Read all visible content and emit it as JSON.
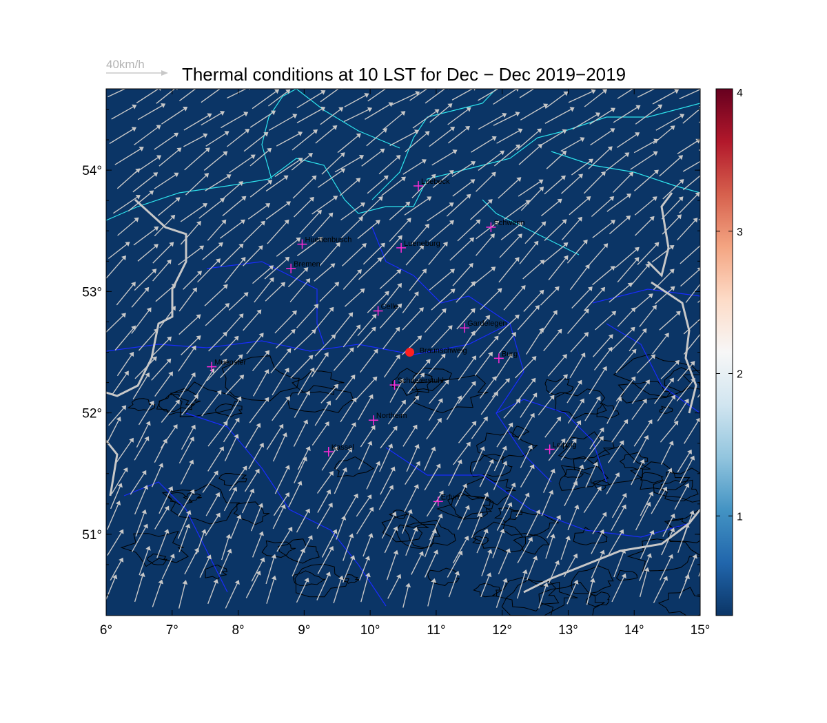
{
  "title": "Thermal conditions at 10 LST for Dec − Dec  2019−2019",
  "wind_legend": {
    "label": "40km/h",
    "color": "#c0c0c0"
  },
  "map": {
    "lon_range": [
      6,
      15
    ],
    "lat_range": [
      50.33,
      54.67
    ],
    "background_color": "#0b3566",
    "contour_color": "#000000",
    "border_color": "#1a2cff",
    "coast_color": "#2ee6ee",
    "national_border_color": "#c8c8c8",
    "arrow_color": "#c8c8c8",
    "x_ticks": [
      "6°",
      "7°",
      "8°",
      "9°",
      "10°",
      "11°",
      "12°",
      "13°",
      "14°",
      "15°"
    ],
    "y_ticks": [
      {
        "lat": 51,
        "label": "51°"
      },
      {
        "lat": 52,
        "label": "52°"
      },
      {
        "lat": 53,
        "label": "53°"
      },
      {
        "lat": 54,
        "label": "54°"
      }
    ]
  },
  "marker": {
    "name": "Braunschweig",
    "lon": 10.6,
    "lat": 52.5,
    "color": "#ff2020"
  },
  "cities": [
    {
      "name": "Luebeck",
      "lon": 10.73,
      "lat": 53.87
    },
    {
      "name": "Schwerin",
      "lon": 11.83,
      "lat": 53.53
    },
    {
      "name": "Huettenbusch",
      "lon": 8.97,
      "lat": 53.39
    },
    {
      "name": "Lueneburg",
      "lon": 10.47,
      "lat": 53.36
    },
    {
      "name": "Bremen",
      "lon": 8.8,
      "lat": 53.19
    },
    {
      "name": "Celle",
      "lon": 10.12,
      "lat": 52.84
    },
    {
      "name": "Gardelegen",
      "lon": 11.43,
      "lat": 52.7
    },
    {
      "name": "Burg",
      "lon": 11.95,
      "lat": 52.45
    },
    {
      "name": "Muenster",
      "lon": 7.6,
      "lat": 52.38
    },
    {
      "name": "Schaeferstuhl",
      "lon": 10.37,
      "lat": 52.23
    },
    {
      "name": "Northeim",
      "lon": 10.05,
      "lat": 51.94
    },
    {
      "name": "Kassel",
      "lon": 9.37,
      "lat": 51.68
    },
    {
      "name": "Leipzig",
      "lon": 12.72,
      "lat": 51.7
    },
    {
      "name": "Erfurt",
      "lon": 11.03,
      "lat": 51.27
    }
  ],
  "colorbar": {
    "min": 0.3,
    "max": 4,
    "ticks": [
      "1",
      "2",
      "3",
      "4"
    ],
    "tick_values": [
      1,
      2,
      3,
      4
    ],
    "colors": [
      "#0b3566",
      "#2166ac",
      "#4393c3",
      "#92c5de",
      "#d1e5f0",
      "#f7f7f7",
      "#fddbc7",
      "#f4a582",
      "#d6604d",
      "#b2182b",
      "#67001f"
    ]
  }
}
